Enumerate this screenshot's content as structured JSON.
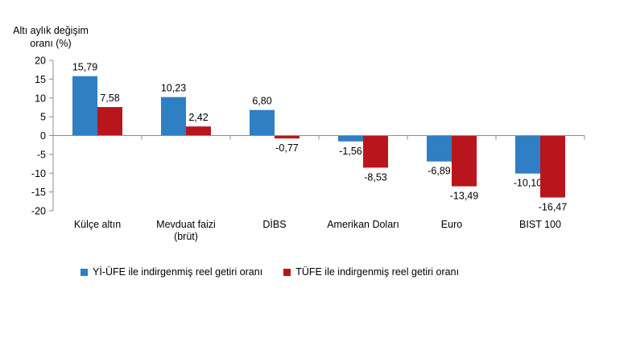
{
  "chart_data": {
    "type": "bar",
    "ylabel": "Altı aylık değişim oranı (%)",
    "ylabel_lines": [
      "Altı aylık değişim",
      "oranı (%)"
    ],
    "ylim": [
      -20,
      20
    ],
    "yticks": [
      20,
      15,
      10,
      5,
      0,
      -5,
      -10,
      -15,
      -20
    ],
    "grid": false,
    "legend_position": "bottom",
    "categories": [
      "Külçe altın",
      "Mevduat faizi (brüt)",
      "DİBS",
      "Amerikan Doları",
      "Euro",
      "BIST 100"
    ],
    "category_lines": [
      [
        "Külçe altın"
      ],
      [
        "Mevduat faizi",
        "(brüt)"
      ],
      [
        "DİBS"
      ],
      [
        "Amerikan Doları"
      ],
      [
        "Euro"
      ],
      [
        "BIST 100"
      ]
    ],
    "series": [
      {
        "name": "Yİ-ÜFE ile indirgenmiş reel getiri oranı",
        "color": "#2e7fc4",
        "values": [
          15.79,
          10.23,
          6.8,
          -1.56,
          -6.89,
          -10.1
        ],
        "labels": [
          "15,79",
          "10,23",
          "6,80",
          "-1,56",
          "-6,89",
          "-10,10"
        ]
      },
      {
        "name": "TÜFE ile indirgenmiş reel getiri oranı",
        "color": "#b8161c",
        "values": [
          7.58,
          2.42,
          -0.77,
          -8.53,
          -13.49,
          -16.47
        ],
        "labels": [
          "7,58",
          "2,42",
          "-0,77",
          "-8,53",
          "-13,49",
          "-16,47"
        ]
      }
    ]
  }
}
